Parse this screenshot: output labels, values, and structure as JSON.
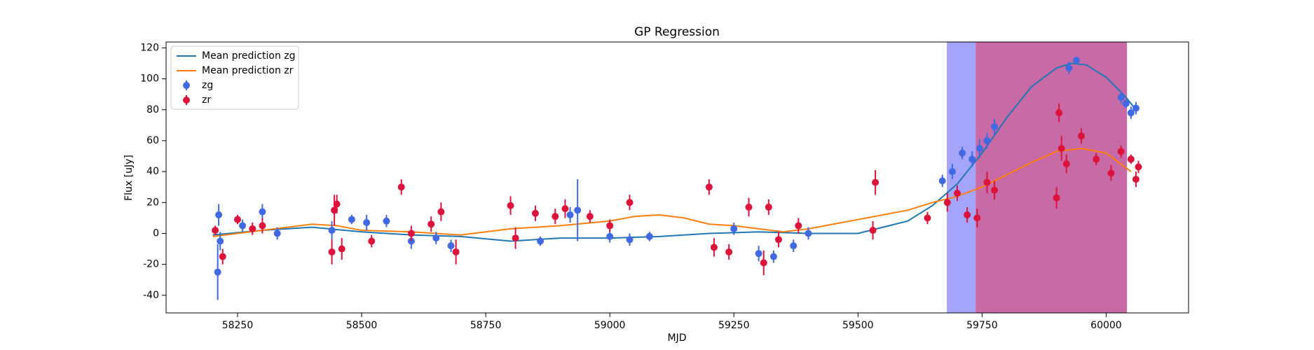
{
  "chart_data": {
    "type": "line",
    "title": "GP Regression",
    "x_label": "MJD",
    "y_label": "Flux [uJy]",
    "xlim": [
      58106,
      60166
    ],
    "ylim": [
      -51.4,
      123.8
    ],
    "xticks": [
      58250,
      58500,
      58750,
      59000,
      59250,
      59500,
      59750,
      60000
    ],
    "yticks": [
      -40,
      -20,
      0,
      20,
      40,
      60,
      80,
      100,
      120
    ],
    "legend": "upper left",
    "spans": [
      {
        "range": [
          59679,
          59737
        ],
        "color": "#a4a4fb"
      },
      {
        "range": [
          59737,
          60042
        ],
        "color": "#c86aa6"
      }
    ],
    "series": [
      {
        "name": "Mean prediction zg",
        "kind": "line",
        "color": "#1f77b4",
        "x": [
          58200,
          58300,
          58400,
          58500,
          58600,
          58700,
          58800,
          58900,
          59000,
          59100,
          59200,
          59300,
          59400,
          59500,
          59600,
          59650,
          59700,
          59750,
          59800,
          59850,
          59900,
          59930,
          59960,
          60000,
          60040,
          60060
        ],
        "values": [
          -1,
          2,
          4,
          1,
          -1,
          -2,
          -5,
          -3,
          -3,
          -2,
          0,
          1,
          0,
          0,
          8,
          18,
          32,
          52,
          75,
          95,
          107,
          110,
          109,
          101,
          88,
          80
        ]
      },
      {
        "name": "Mean prediction zr",
        "kind": "line",
        "color": "#ff7f0e",
        "x": [
          58200,
          58300,
          58400,
          58450,
          58500,
          58600,
          58700,
          58800,
          58900,
          59000,
          59050,
          59100,
          59150,
          59200,
          59250,
          59300,
          59350,
          59400,
          59500,
          59600,
          59650,
          59700,
          59750,
          59800,
          59850,
          59900,
          59950,
          60000,
          60050
        ],
        "values": [
          -2,
          2,
          6,
          5,
          2,
          1,
          -1,
          3,
          5,
          8,
          11,
          12,
          10,
          6,
          5,
          3,
          1,
          3,
          9,
          15,
          20,
          24,
          30,
          38,
          46,
          53,
          55,
          52,
          40
        ]
      },
      {
        "name": "zg",
        "kind": "errorbar",
        "color": "#4169e1",
        "x": [
          58210,
          58215,
          58212,
          58260,
          58300,
          58330,
          58440,
          58480,
          58510,
          58550,
          58600,
          58650,
          58680,
          58860,
          58920,
          58935,
          59000,
          59040,
          59080,
          59250,
          59300,
          59330,
          59370,
          59400,
          59670,
          59690,
          59710,
          59730,
          59745,
          59760,
          59775,
          59925,
          59940,
          60030,
          60040,
          60050,
          60060
        ],
        "values": [
          -25,
          -5,
          12,
          5,
          14,
          0,
          2,
          9,
          7,
          8,
          -5,
          -3,
          -8,
          -5,
          12,
          15,
          -2,
          -4,
          -2,
          3,
          -13,
          -15,
          -8,
          0,
          34,
          40,
          52,
          48,
          55,
          60,
          69,
          107,
          112,
          88,
          84,
          78,
          81
        ],
        "errors": [
          18,
          6,
          7,
          4,
          5,
          4,
          6,
          3,
          5,
          4,
          5,
          4,
          4,
          3,
          5,
          20,
          4,
          4,
          3,
          4,
          5,
          4,
          4,
          4,
          4,
          5,
          4,
          5,
          6,
          5,
          5,
          4,
          2,
          4,
          3,
          4,
          4
        ]
      },
      {
        "name": "zr",
        "kind": "errorbar",
        "color": "#dc143c",
        "x": [
          58205,
          58220,
          58250,
          58280,
          58300,
          58440,
          58445,
          58450,
          58460,
          58520,
          58580,
          58600,
          58640,
          58660,
          58690,
          58800,
          58810,
          58850,
          58890,
          58910,
          58960,
          59000,
          59040,
          59200,
          59210,
          59240,
          59280,
          59310,
          59320,
          59340,
          59380,
          59530,
          59535,
          59640,
          59680,
          59700,
          59720,
          59740,
          59760,
          59775,
          59900,
          59905,
          59910,
          59920,
          59950,
          59980,
          60010,
          60030,
          60050,
          60060,
          60065
        ],
        "values": [
          2,
          -15,
          9,
          3,
          5,
          -12,
          15,
          19,
          -10,
          -5,
          30,
          0,
          6,
          14,
          -12,
          18,
          -3,
          13,
          11,
          16,
          11,
          5,
          20,
          30,
          -9,
          -12,
          17,
          -19,
          17,
          -4,
          5,
          2,
          33,
          10,
          20,
          26,
          12,
          10,
          33,
          28,
          23,
          78,
          55,
          45,
          63,
          48,
          39,
          53,
          48,
          35,
          43
        ],
        "errors": [
          3,
          5,
          3,
          4,
          5,
          8,
          10,
          6,
          7,
          4,
          5,
          5,
          5,
          6,
          8,
          6,
          7,
          5,
          5,
          6,
          4,
          4,
          5,
          5,
          6,
          5,
          6,
          8,
          5,
          5,
          5,
          6,
          8,
          4,
          6,
          5,
          5,
          6,
          7,
          6,
          7,
          6,
          8,
          6,
          5,
          4,
          5,
          4,
          3,
          5,
          4
        ]
      }
    ]
  }
}
